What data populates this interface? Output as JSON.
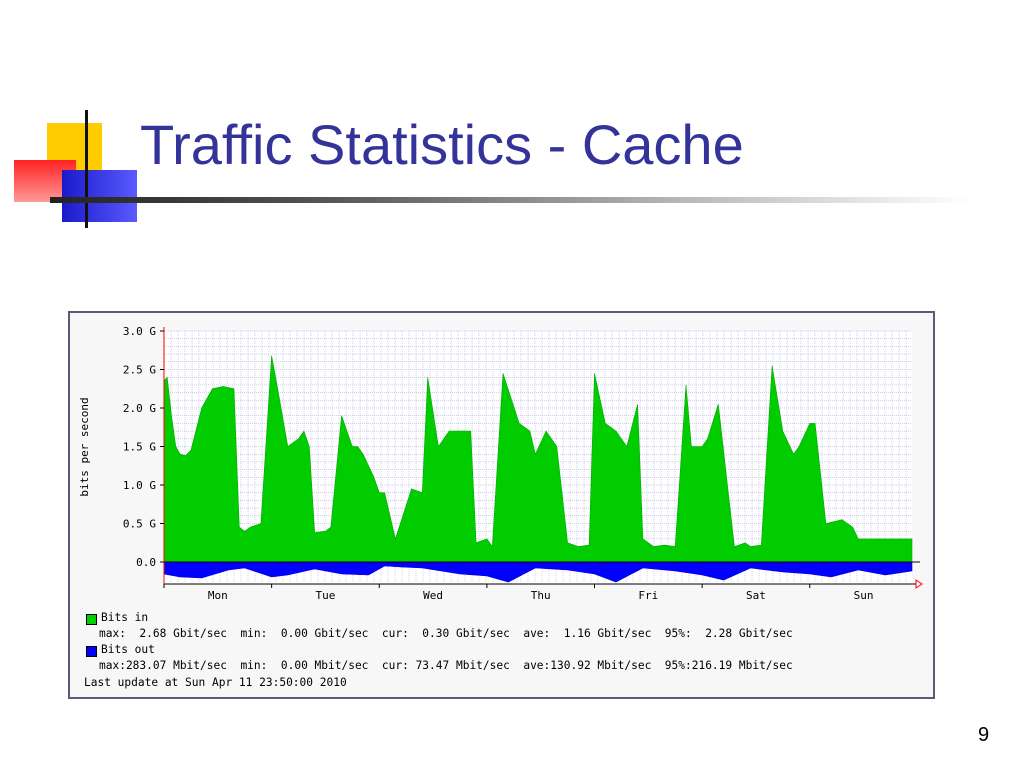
{
  "slide": {
    "title": "Traffic Statistics - Cache",
    "number": "9"
  },
  "colors": {
    "title": "#333399",
    "bits_in": "#00cc00",
    "bits_out": "#0000ff",
    "grid": "#a0a0e0",
    "axis_marker": "#ff0000"
  },
  "chart_data": {
    "type": "area",
    "title": "",
    "ylabel": "bits per second",
    "xlabel": "",
    "y_ticks": [
      "3.0 G",
      "2.5 G",
      "2.0 G",
      "1.5 G",
      "1.0 G",
      "0.5 G",
      "0.0"
    ],
    "y_tick_values": [
      3.0,
      2.5,
      2.0,
      1.5,
      1.0,
      0.5,
      0.0
    ],
    "ylim": [
      0,
      3.0
    ],
    "x_ticks": [
      "Mon",
      "Tue",
      "Wed",
      "Thu",
      "Fri",
      "Sat",
      "Sun"
    ],
    "xlim_days": [
      -0.45,
      6.5
    ],
    "grid": true,
    "legend_position": "bottom",
    "series": [
      {
        "name": "Bits in",
        "unit": "Gbit/s",
        "x_days": [
          -0.45,
          -0.42,
          -0.38,
          -0.34,
          -0.3,
          -0.25,
          -0.2,
          -0.1,
          0.0,
          0.1,
          0.2,
          0.25,
          0.3,
          0.35,
          0.45,
          0.55,
          0.6,
          0.7,
          0.8,
          0.85,
          0.9,
          0.95,
          1.05,
          1.1,
          1.2,
          1.3,
          1.35,
          1.4,
          1.5,
          1.55,
          1.6,
          1.7,
          1.85,
          1.95,
          2.0,
          2.1,
          2.2,
          2.3,
          2.4,
          2.45,
          2.55,
          2.6,
          2.7,
          2.85,
          2.95,
          3.0,
          3.1,
          3.2,
          3.3,
          3.4,
          3.5,
          3.55,
          3.65,
          3.75,
          3.85,
          3.95,
          4.0,
          4.1,
          4.2,
          4.3,
          4.4,
          4.45,
          4.55,
          4.6,
          4.7,
          4.85,
          4.95,
          5.0,
          5.1,
          5.2,
          5.3,
          5.4,
          5.45,
          5.55,
          5.6,
          5.7,
          5.85,
          5.95,
          6.0,
          6.1,
          6.2,
          6.3,
          6.35,
          6.4,
          6.45,
          6.5
        ],
        "values": [
          2.35,
          2.4,
          1.9,
          1.5,
          1.4,
          1.38,
          1.45,
          2.0,
          2.25,
          2.28,
          2.25,
          0.45,
          0.4,
          0.45,
          0.5,
          2.68,
          2.3,
          1.5,
          1.6,
          1.7,
          1.5,
          0.38,
          0.4,
          0.45,
          1.9,
          1.5,
          1.5,
          1.4,
          1.1,
          0.9,
          0.9,
          0.3,
          0.95,
          0.9,
          2.4,
          1.5,
          1.7,
          1.7,
          1.7,
          0.25,
          0.3,
          0.2,
          2.45,
          1.8,
          1.7,
          1.4,
          1.7,
          1.5,
          0.25,
          0.2,
          0.22,
          2.45,
          1.8,
          1.7,
          1.5,
          2.05,
          0.3,
          0.2,
          0.22,
          0.2,
          2.3,
          1.5,
          1.5,
          1.6,
          2.05,
          0.2,
          0.25,
          0.2,
          0.22,
          2.55,
          1.7,
          1.4,
          1.5,
          1.8,
          1.8,
          0.5,
          0.55,
          0.45,
          0.3,
          0.3,
          0.3,
          0.3,
          0.3,
          0.3,
          0.3,
          0.3
        ]
      },
      {
        "name": "Bits out",
        "unit": "Mbit/s",
        "x_days": [
          -0.45,
          -0.3,
          -0.1,
          0.15,
          0.3,
          0.55,
          0.7,
          0.95,
          1.2,
          1.45,
          1.6,
          1.75,
          1.95,
          2.3,
          2.55,
          2.75,
          3.0,
          3.3,
          3.55,
          3.75,
          4.0,
          4.3,
          4.55,
          4.75,
          5.0,
          5.3,
          5.55,
          5.75,
          6.0,
          6.25,
          6.5
        ],
        "values": [
          120,
          150,
          160,
          80,
          60,
          150,
          130,
          70,
          120,
          130,
          40,
          50,
          60,
          120,
          140,
          200,
          60,
          80,
          120,
          200,
          60,
          90,
          130,
          180,
          60,
          100,
          120,
          150,
          80,
          130,
          90
        ]
      }
    ],
    "legend": [
      {
        "name": "Bits in",
        "line": "max:  2.68 Gbit/sec  min:  0.00 Gbit/sec  cur:  0.30 Gbit/sec  ave:  1.16 Gbit/sec  95%:  2.28 Gbit/sec"
      },
      {
        "name": "Bits out",
        "line": "max:283.07 Mbit/sec  min:  0.00 Mbit/sec  cur: 73.47 Mbit/sec  ave:130.92 Mbit/sec  95%:216.19 Mbit/sec"
      }
    ],
    "last_update": "Last update at Sun Apr 11 23:50:00 2010"
  }
}
